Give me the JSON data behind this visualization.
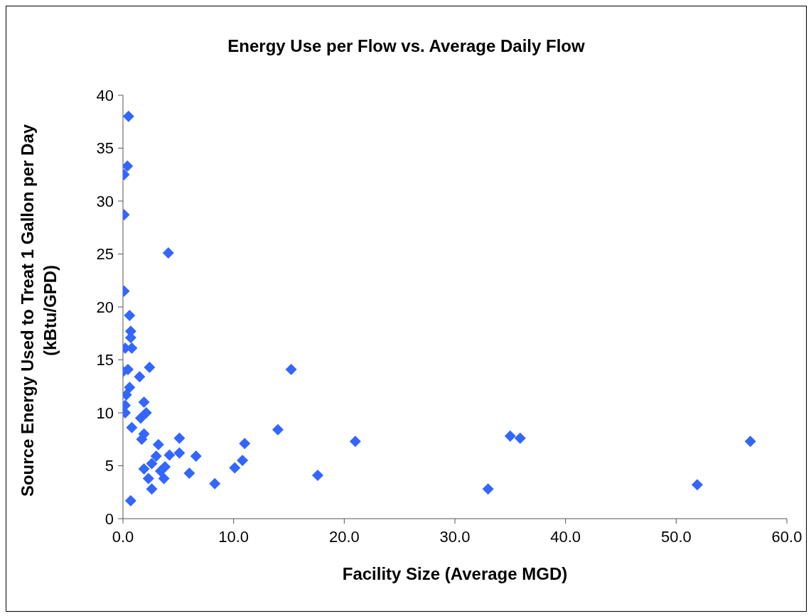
{
  "chart_data": {
    "type": "scatter",
    "title": "Energy Use per Flow vs. Average Daily Flow",
    "xlabel": "Facility Size (Average MGD)",
    "ylabel": "Source Energy Used to Treat 1 Gallon per Day (kBtu/GPD)",
    "marker": "diamond",
    "grid": false,
    "xlim": [
      0,
      60
    ],
    "xticks": [
      {
        "value": 0,
        "label": "0.0"
      },
      {
        "value": 10,
        "label": "10.0"
      },
      {
        "value": 20,
        "label": "20.0"
      },
      {
        "value": 30,
        "label": "30.0"
      },
      {
        "value": 40,
        "label": "40.0"
      },
      {
        "value": 50,
        "label": "50.0"
      },
      {
        "value": 60,
        "label": "60.0"
      }
    ],
    "ylim": [
      0,
      40
    ],
    "yticks": [
      0,
      5,
      10,
      15,
      20,
      25,
      30,
      35,
      40
    ],
    "series": [
      {
        "color": "#3366ff",
        "x": [
          0.5,
          0.4,
          0.1,
          0.1,
          4.1,
          0.1,
          0.6,
          0.7,
          0.7,
          0.2,
          0.8,
          0.0,
          0.45,
          2.4,
          1.5,
          0.6,
          0.3,
          0.2,
          0.2,
          1.9,
          0.8,
          1.6,
          2.1,
          1.9,
          1.7,
          3.2,
          5.1,
          5.1,
          4.2,
          3.0,
          6.6,
          2.6,
          3.8,
          1.9,
          3.4,
          3.7,
          2.3,
          6.0,
          2.6,
          8.3,
          0.7,
          10.1,
          10.8,
          11.0,
          14.0,
          15.2,
          17.6,
          21.0,
          33.0,
          35.0,
          35.9,
          51.9,
          56.7
        ],
        "values": [
          38.0,
          33.3,
          32.5,
          28.7,
          25.1,
          21.5,
          19.2,
          17.7,
          17.1,
          16.1,
          16.1,
          13.9,
          14.1,
          14.3,
          13.4,
          12.4,
          11.7,
          10.7,
          10.0,
          11.0,
          8.6,
          9.5,
          10.0,
          8.0,
          7.5,
          7.0,
          7.6,
          6.2,
          6.0,
          5.9,
          5.9,
          5.2,
          4.9,
          4.7,
          4.5,
          3.8,
          3.8,
          4.3,
          2.8,
          3.3,
          1.7,
          4.8,
          5.5,
          7.1,
          8.4,
          14.1,
          4.1,
          7.3,
          2.8,
          7.8,
          7.6,
          3.2,
          7.3
        ]
      }
    ]
  }
}
